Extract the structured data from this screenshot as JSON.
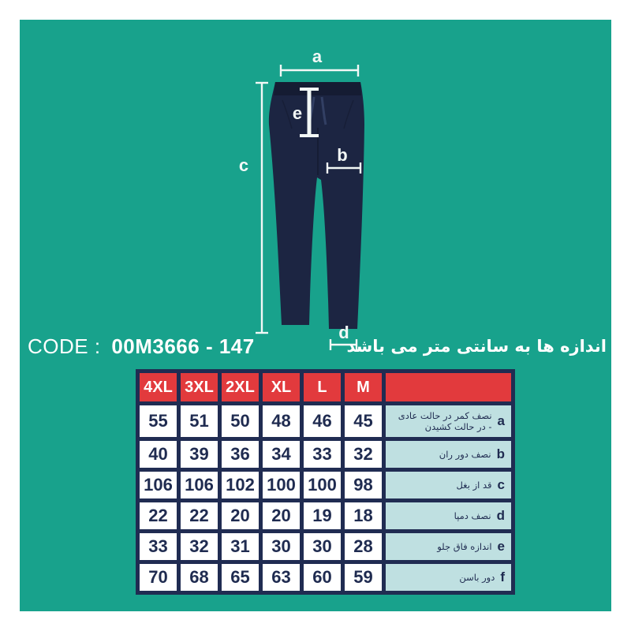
{
  "colors": {
    "canvas_teal": "#18a28c",
    "table_border_navy": "#202c52",
    "header_red": "#e23a3d",
    "desc_cell_blue": "#bfe0e1",
    "pants_navy": "#1c2542",
    "mark_white": "#f2f8f6"
  },
  "code": {
    "label": "CODE :",
    "value": "00M3666 - 147"
  },
  "note": {
    "text": "اندازه ها به سانتی متر می باشد"
  },
  "diagram": {
    "labels": {
      "a": "a",
      "b": "b",
      "c": "c",
      "d": "d",
      "e": "e"
    }
  },
  "size_table": {
    "header_sizes": [
      "4XL",
      "3XL",
      "2XL",
      "XL",
      "L",
      "M"
    ],
    "rows": [
      {
        "letter": "a",
        "label": "نصف کمر در حالت عادی",
        "label2": "- در حالت کشیدن",
        "values": [
          "55",
          "51",
          "50",
          "48",
          "46",
          "45"
        ]
      },
      {
        "letter": "b",
        "label": "نصف دور ران",
        "label2": "",
        "values": [
          "40",
          "39",
          "36",
          "34",
          "33",
          "32"
        ]
      },
      {
        "letter": "c",
        "label": "قد از بغل",
        "label2": "",
        "values": [
          "106",
          "106",
          "102",
          "100",
          "100",
          "98"
        ]
      },
      {
        "letter": "d",
        "label": "نصف دمپا",
        "label2": "",
        "values": [
          "22",
          "22",
          "20",
          "20",
          "19",
          "18"
        ]
      },
      {
        "letter": "e",
        "label": "اندازه فاق جلو",
        "label2": "",
        "values": [
          "33",
          "32",
          "31",
          "30",
          "30",
          "28"
        ]
      },
      {
        "letter": "f",
        "label": "دور باسن",
        "label2": "",
        "values": [
          "70",
          "68",
          "65",
          "63",
          "60",
          "59"
        ]
      }
    ]
  }
}
